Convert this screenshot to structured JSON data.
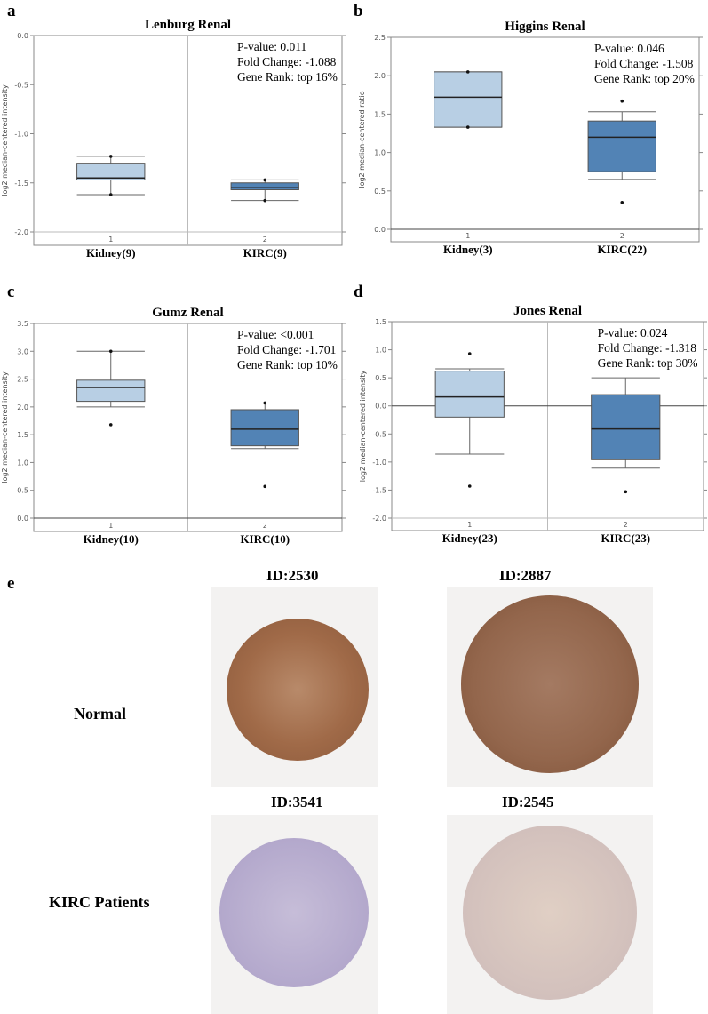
{
  "colors": {
    "normal_box": "#b8cfe4",
    "tumor_box": "#5283b5"
  },
  "chart_data": [
    {
      "panel": "a",
      "type": "box",
      "title": "Lenburg Renal",
      "ylabel": "log2 median-centered intensity",
      "ylim": [
        -2.0,
        0.0
      ],
      "yticks": [
        "0.0",
        "-0.5",
        "-1.0",
        "-1.5",
        "-2.0"
      ],
      "ytick_values": [
        0,
        -0.5,
        -1,
        -1.5,
        -2
      ],
      "categories": [
        "Kidney(9)",
        "KIRC(9)"
      ],
      "index_labels": [
        "1",
        "2"
      ],
      "boxes": [
        {
          "wlo": -1.62,
          "q1": -1.47,
          "med": -1.45,
          "q3": -1.3,
          "whi": -1.23,
          "points": [
            -1.23,
            -1.62
          ]
        },
        {
          "wlo": -1.68,
          "q1": -1.57,
          "med": -1.55,
          "q3": -1.5,
          "whi": -1.47,
          "points": [
            -1.47,
            -1.68
          ]
        }
      ],
      "stats": [
        "P-value: 0.011",
        "Fold Change: -1.088",
        "Gene Rank: top 16%"
      ],
      "zero_line": false
    },
    {
      "panel": "b",
      "type": "box",
      "title": "Higgins Renal",
      "ylabel": "log2 median-centered ratio",
      "ylim": [
        0.0,
        2.5
      ],
      "yticks": [
        "2.5",
        "2.0",
        "1.5",
        "1.0",
        "0.5",
        "0.0"
      ],
      "ytick_values": [
        2.5,
        2,
        1.5,
        1,
        0.5,
        0
      ],
      "categories": [
        "Kidney(3)",
        "KIRC(22)"
      ],
      "index_labels": [
        "1",
        "2"
      ],
      "boxes": [
        {
          "wlo": 1.33,
          "q1": 1.33,
          "med": 1.72,
          "q3": 2.05,
          "whi": 2.05,
          "points": [
            2.05,
            1.33
          ]
        },
        {
          "wlo": 0.65,
          "q1": 0.75,
          "med": 1.2,
          "q3": 1.41,
          "whi": 1.53,
          "points": [
            1.67,
            0.35
          ]
        }
      ],
      "stats": [
        "P-value: 0.046",
        "Fold Change: -1.508",
        "Gene Rank: top 20%"
      ],
      "zero_line": true
    },
    {
      "panel": "c",
      "type": "box",
      "title": "Gumz Renal",
      "ylabel": "log2 median-centered intensity",
      "ylim": [
        0.0,
        3.5
      ],
      "yticks": [
        "3.5",
        "3.0",
        "2.5",
        "2.0",
        "1.5",
        "1.0",
        "0.5",
        "0.0"
      ],
      "ytick_values": [
        3.5,
        3,
        2.5,
        2,
        1.5,
        1,
        0.5,
        0
      ],
      "categories": [
        "Kidney(10)",
        "KIRC(10)"
      ],
      "index_labels": [
        "1",
        "2"
      ],
      "boxes": [
        {
          "wlo": 2.0,
          "q1": 2.1,
          "med": 2.35,
          "q3": 2.48,
          "whi": 3.0,
          "points": [
            3.0,
            1.68
          ]
        },
        {
          "wlo": 1.25,
          "q1": 1.3,
          "med": 1.6,
          "q3": 1.95,
          "whi": 2.07,
          "points": [
            2.07,
            0.57
          ]
        }
      ],
      "stats": [
        "P-value: <0.001",
        "Fold Change: -1.701",
        "Gene Rank: top 10%"
      ],
      "zero_line": true
    },
    {
      "panel": "d",
      "type": "box",
      "title": "Jones Renal",
      "ylabel": "log2 median-centered intensity",
      "ylim": [
        -2.0,
        1.5
      ],
      "yticks": [
        "1.5",
        "1.0",
        "0.5",
        "0.0",
        "-0.5",
        "-1.0",
        "-1.5",
        "-2.0"
      ],
      "ytick_values": [
        1.5,
        1,
        0.5,
        0,
        -0.5,
        -1,
        -1.5,
        -2
      ],
      "categories": [
        "Kidney(23)",
        "KIRC(23)"
      ],
      "index_labels": [
        "1",
        "2"
      ],
      "boxes": [
        {
          "wlo": -0.86,
          "q1": -0.2,
          "med": 0.16,
          "q3": 0.62,
          "whi": 0.66,
          "points": [
            0.93,
            -1.43
          ]
        },
        {
          "wlo": -1.11,
          "q1": -0.96,
          "med": -0.41,
          "q3": 0.2,
          "whi": 0.5,
          "points": [
            -1.53
          ]
        }
      ],
      "stats": [
        "P-value: 0.024",
        "Fold Change: -1.318",
        "Gene Rank: top 30%"
      ],
      "zero_line": true
    }
  ],
  "panel_e": {
    "label": "e",
    "rows": [
      "Normal",
      "KIRC Patients"
    ],
    "ids": [
      "ID:2530",
      "ID:2887",
      "ID:3541",
      "ID:2545"
    ]
  }
}
